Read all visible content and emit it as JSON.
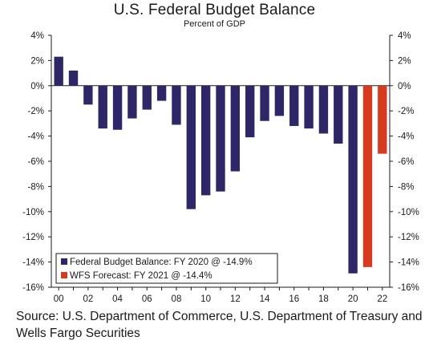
{
  "title": "U.S. Federal Budget Balance",
  "subtitle": "Percent of GDP",
  "source": "Source: U.S. Department of Commerce, U.S. Department of Treasury and Wells Fargo Securities",
  "colors": {
    "budget": "#2e2767",
    "forecast": "#d63a1f",
    "axis": "#1a1a1a"
  },
  "chart_data": {
    "type": "bar",
    "title": "U.S. Federal Budget Balance",
    "subtitle": "Percent of GDP",
    "ylim": [
      -16,
      4
    ],
    "yticks": [
      4,
      2,
      0,
      -2,
      -4,
      -6,
      -8,
      -10,
      -12,
      -14,
      -16
    ],
    "ytick_labels": [
      "4%",
      "2%",
      "0%",
      "-2%",
      "-4%",
      "-6%",
      "-8%",
      "-10%",
      "-12%",
      "-14%",
      "-16%"
    ],
    "xtick_labels": [
      "00",
      "02",
      "04",
      "06",
      "08",
      "10",
      "12",
      "14",
      "16",
      "18",
      "20",
      "22"
    ],
    "categories": [
      "00",
      "01",
      "02",
      "03",
      "04",
      "05",
      "06",
      "07",
      "08",
      "09",
      "10",
      "11",
      "12",
      "13",
      "14",
      "15",
      "16",
      "17",
      "18",
      "19",
      "20",
      "21",
      "22"
    ],
    "series": [
      {
        "name": "Federal Budget Balance: FY 2020 @ -14.9%",
        "values": [
          2.3,
          1.2,
          -1.5,
          -3.4,
          -3.5,
          -2.6,
          -1.9,
          -1.2,
          -3.1,
          -9.8,
          -8.7,
          -8.4,
          -6.8,
          -4.1,
          -2.8,
          -2.4,
          -3.2,
          -3.4,
          -3.8,
          -4.6,
          -14.9,
          null,
          null
        ]
      },
      {
        "name": "WFS Forecast: FY 2021 @ -14.4%",
        "values": [
          null,
          null,
          null,
          null,
          null,
          null,
          null,
          null,
          null,
          null,
          null,
          null,
          null,
          null,
          null,
          null,
          null,
          null,
          null,
          null,
          null,
          -14.4,
          -5.4
        ]
      }
    ],
    "legend_position": "bottom-left",
    "grid": false
  }
}
